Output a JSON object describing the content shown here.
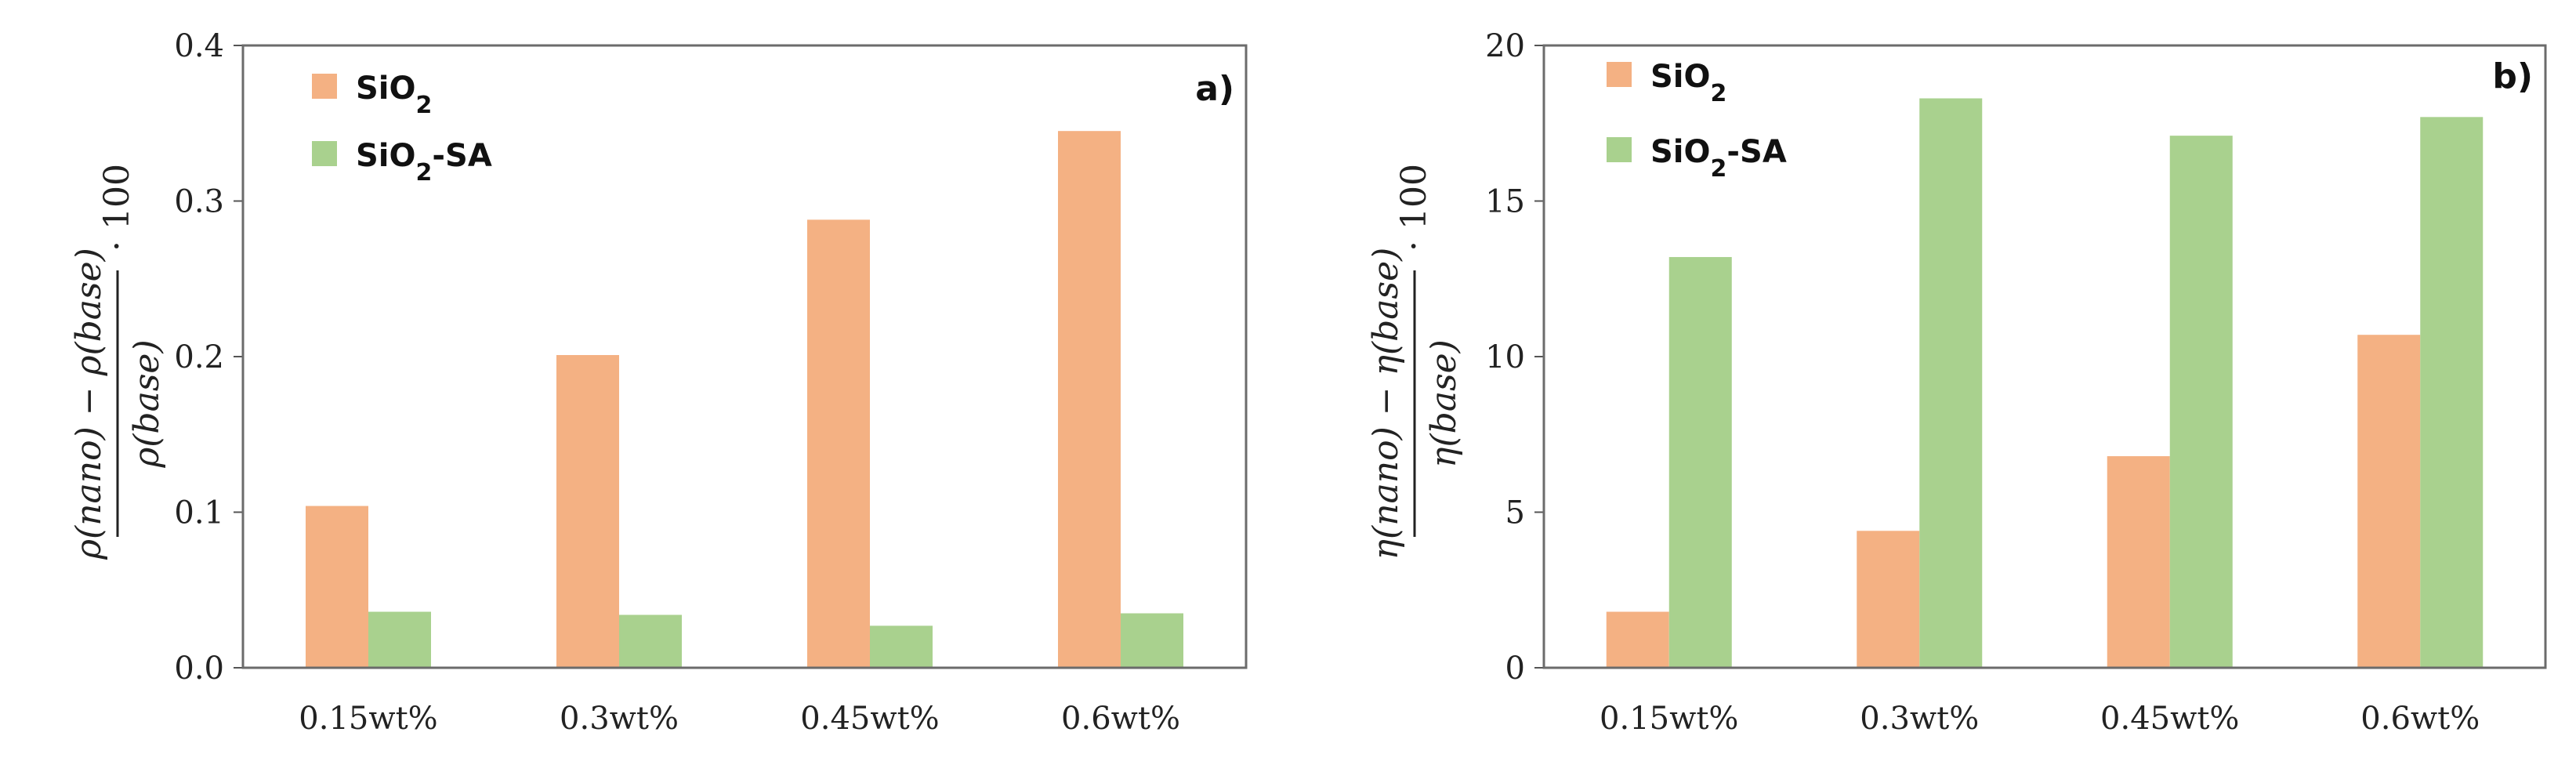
{
  "chart_data": [
    {
      "type": "bar",
      "panel_label": "a)",
      "ylabel": {
        "numerator": "ρ(nano) − ρ(base)",
        "denominator": "ρ(base)",
        "factor": "· 100"
      },
      "ylim": [
        0,
        0.4
      ],
      "yticks": [
        "0.0",
        "0.1",
        "0.2",
        "0.3",
        "0.4"
      ],
      "categories": [
        "0.15wt%",
        "0.3wt%",
        "0.45wt%",
        "0.6wt%"
      ],
      "legend_position": "top-left",
      "series": [
        {
          "name": "SiO",
          "subscript": "2",
          "suffix": "",
          "color": "#f4b183",
          "values": [
            0.104,
            0.201,
            0.288,
            0.345
          ]
        },
        {
          "name": "SiO",
          "subscript": "2",
          "suffix": "-SA",
          "color": "#a9d18e",
          "values": [
            0.036,
            0.034,
            0.027,
            0.035
          ]
        }
      ]
    },
    {
      "type": "bar",
      "panel_label": "b)",
      "ylabel": {
        "numerator": "η(nano) − η(base)",
        "denominator": "η(base)",
        "factor": "· 100"
      },
      "ylim": [
        0,
        20
      ],
      "yticks": [
        "0",
        "5",
        "10",
        "15",
        "20"
      ],
      "categories": [
        "0.15wt%",
        "0.3wt%",
        "0.45wt%",
        "0.6wt%"
      ],
      "legend_position": "top-left",
      "series": [
        {
          "name": "SiO",
          "subscript": "2",
          "suffix": "",
          "color": "#f4b183",
          "values": [
            1.8,
            4.4,
            6.8,
            10.7
          ]
        },
        {
          "name": "SiO",
          "subscript": "2",
          "suffix": "-SA",
          "color": "#a9d18e",
          "values": [
            13.2,
            18.3,
            17.1,
            17.7
          ]
        }
      ]
    }
  ]
}
